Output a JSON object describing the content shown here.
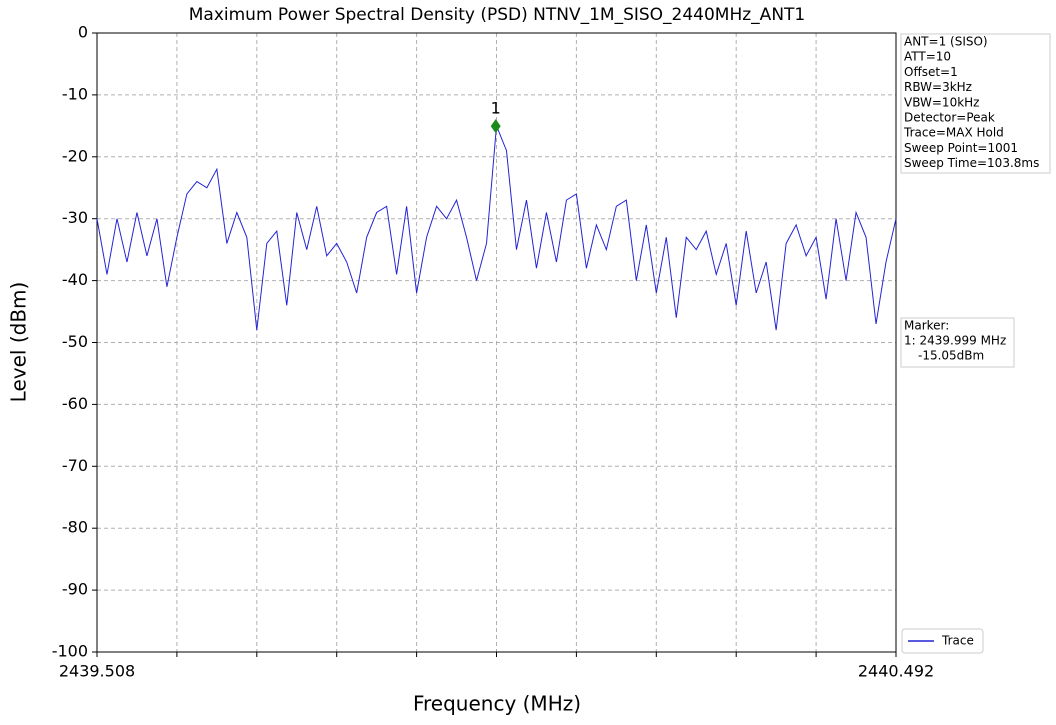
{
  "chart_data": {
    "type": "line",
    "title": "Maximum Power Spectral Density (PSD) NTNV_1M_SISO_2440MHz_ANT1",
    "x_label": "Frequency (MHz)",
    "y_label": "Level (dBm)",
    "xlim": [
      2439.508,
      2440.492
    ],
    "ylim": [
      -100,
      0
    ],
    "xticks": [
      2439.508,
      2439.6064,
      2439.7048,
      2439.8032,
      2439.9016,
      2440.0,
      2440.0984,
      2440.1968,
      2440.2952,
      2440.3936,
      2440.492
    ],
    "yticks": [
      -100,
      -90,
      -80,
      -70,
      -60,
      -50,
      -40,
      -30,
      -20,
      -10,
      0
    ],
    "grid": true,
    "legend": "lower right",
    "x": [
      2439.508,
      2439.5203,
      2439.5326,
      2439.5449,
      2439.5572,
      2439.5695,
      2439.5818,
      2439.5941,
      2439.6064,
      2439.6187,
      2439.631,
      2439.6433,
      2439.6556,
      2439.6679,
      2439.6802,
      2439.6925,
      2439.7048,
      2439.7171,
      2439.7294,
      2439.7417,
      2439.754,
      2439.7663,
      2439.7786,
      2439.7909,
      2439.8032,
      2439.8155,
      2439.8278,
      2439.8401,
      2439.8524,
      2439.8647,
      2439.877,
      2439.8893,
      2439.9016,
      2439.9139,
      2439.9262,
      2439.9385,
      2439.9508,
      2439.9631,
      2439.9754,
      2439.9877,
      2440.0,
      2440.0123,
      2440.0246,
      2440.0369,
      2440.0492,
      2440.0615,
      2440.0738,
      2440.0861,
      2440.0984,
      2440.1107,
      2440.123,
      2440.1353,
      2440.1476,
      2440.1599,
      2440.1722,
      2440.1845,
      2440.1968,
      2440.2091,
      2440.2214,
      2440.2337,
      2440.246,
      2440.2583,
      2440.2706,
      2440.2829,
      2440.2952,
      2440.3075,
      2440.3198,
      2440.3321,
      2440.3444,
      2440.3567,
      2440.369,
      2440.3813,
      2440.3936,
      2440.4059,
      2440.4182,
      2440.4305,
      2440.4428,
      2440.4551,
      2440.4674,
      2440.4797,
      2440.492
    ],
    "series": [
      {
        "name": "Trace",
        "color": "#2424d6",
        "values": [
          -30,
          -39,
          -30,
          -37,
          -29,
          -36,
          -30,
          -41,
          -33,
          -26,
          -24,
          -25,
          -22,
          -34,
          -29,
          -33,
          -48,
          -34,
          -32,
          -44,
          -29,
          -35,
          -28,
          -36,
          -34,
          -37,
          -42,
          -33,
          -29,
          -28,
          -39,
          -28,
          -42,
          -33,
          -28,
          -30,
          -27,
          -33,
          -40,
          -34,
          -15,
          -19,
          -35,
          -27,
          -38,
          -29,
          -37,
          -27,
          -26,
          -38,
          -31,
          -35,
          -28,
          -27,
          -40,
          -31,
          -42,
          -33,
          -46,
          -33,
          -35,
          -32,
          -39,
          -34,
          -44,
          -32,
          -42,
          -37,
          -48,
          -34,
          -31,
          -36,
          -33,
          -43,
          -30,
          -40,
          -29,
          -33,
          -47,
          -37,
          -30
        ]
      }
    ],
    "marker": {
      "label": "1",
      "x": 2439.999,
      "y": -15.05,
      "color": "#1a8a1a"
    },
    "info": [
      "ANT=1 (SISO)",
      "ATT=10",
      "Offset=1",
      "RBW=3kHz",
      "VBW=10kHz",
      "Detector=Peak",
      "Trace=MAX Hold",
      "Sweep Point=1001",
      "Sweep Time=103.8ms"
    ],
    "marker_box": [
      "Marker:",
      "1: 2439.999 MHz",
      "-15.05dBm"
    ]
  }
}
